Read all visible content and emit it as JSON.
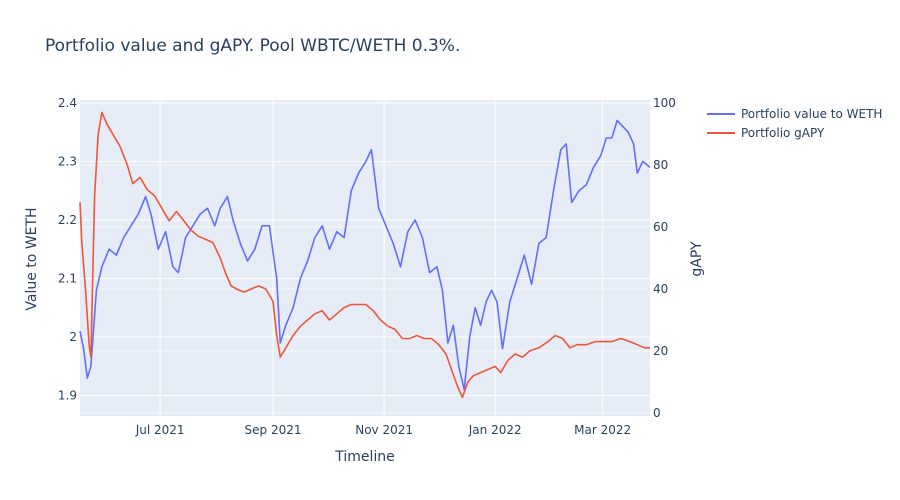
{
  "chart_data": {
    "type": "line",
    "title": "Portfolio value and gAPY. Pool WBTC/WETH 0.3%.",
    "xlabel": "Timeline",
    "ylabel_left": "Value to WETH",
    "ylabel_right": "gAPY",
    "x_range": [
      "2021-05-18",
      "2022-03-27"
    ],
    "y_left_range": [
      1.865,
      2.405
    ],
    "y_right_range": [
      -1,
      101
    ],
    "x_ticks": [
      {
        "date": "2021-07-01",
        "label": "Jul 2021"
      },
      {
        "date": "2021-09-01",
        "label": "Sep 2021"
      },
      {
        "date": "2021-11-01",
        "label": "Nov 2021"
      },
      {
        "date": "2022-01-01",
        "label": "Jan 2022"
      },
      {
        "date": "2022-03-01",
        "label": "Mar 2022"
      }
    ],
    "y_left_ticks": [
      {
        "value": 1.9,
        "label": "1.9"
      },
      {
        "value": 2.0,
        "label": "2"
      },
      {
        "value": 2.1,
        "label": "2.1"
      },
      {
        "value": 2.2,
        "label": "2.2"
      },
      {
        "value": 2.3,
        "label": "2.3"
      },
      {
        "value": 2.4,
        "label": "2.4"
      }
    ],
    "y_right_ticks": [
      {
        "value": 0,
        "label": "0"
      },
      {
        "value": 20,
        "label": "20"
      },
      {
        "value": 40,
        "label": "40"
      },
      {
        "value": 60,
        "label": "60"
      },
      {
        "value": 80,
        "label": "80"
      },
      {
        "value": 100,
        "label": "100"
      }
    ],
    "legend_position": "top-right",
    "series": [
      {
        "name": "Portfolio value to WETH",
        "color": "#636efa",
        "axis": "left",
        "points": [
          [
            "2021-05-18",
            2.01
          ],
          [
            "2021-05-20",
            1.98
          ],
          [
            "2021-05-22",
            1.93
          ],
          [
            "2021-05-24",
            1.95
          ],
          [
            "2021-05-27",
            2.08
          ],
          [
            "2021-05-30",
            2.12
          ],
          [
            "2021-06-03",
            2.15
          ],
          [
            "2021-06-07",
            2.14
          ],
          [
            "2021-06-11",
            2.17
          ],
          [
            "2021-06-15",
            2.19
          ],
          [
            "2021-06-19",
            2.21
          ],
          [
            "2021-06-23",
            2.24
          ],
          [
            "2021-06-26",
            2.21
          ],
          [
            "2021-06-30",
            2.15
          ],
          [
            "2021-07-04",
            2.18
          ],
          [
            "2021-07-08",
            2.12
          ],
          [
            "2021-07-11",
            2.11
          ],
          [
            "2021-07-15",
            2.17
          ],
          [
            "2021-07-19",
            2.19
          ],
          [
            "2021-07-23",
            2.21
          ],
          [
            "2021-07-27",
            2.22
          ],
          [
            "2021-07-31",
            2.19
          ],
          [
            "2021-08-03",
            2.22
          ],
          [
            "2021-08-07",
            2.24
          ],
          [
            "2021-08-10",
            2.2
          ],
          [
            "2021-08-14",
            2.16
          ],
          [
            "2021-08-18",
            2.13
          ],
          [
            "2021-08-22",
            2.15
          ],
          [
            "2021-08-26",
            2.19
          ],
          [
            "2021-08-30",
            2.19
          ],
          [
            "2021-09-03",
            2.1
          ],
          [
            "2021-09-05",
            1.99
          ],
          [
            "2021-09-08",
            2.02
          ],
          [
            "2021-09-12",
            2.05
          ],
          [
            "2021-09-16",
            2.1
          ],
          [
            "2021-09-20",
            2.13
          ],
          [
            "2021-09-24",
            2.17
          ],
          [
            "2021-09-28",
            2.19
          ],
          [
            "2021-10-02",
            2.15
          ],
          [
            "2021-10-06",
            2.18
          ],
          [
            "2021-10-10",
            2.17
          ],
          [
            "2021-10-14",
            2.25
          ],
          [
            "2021-10-18",
            2.28
          ],
          [
            "2021-10-22",
            2.3
          ],
          [
            "2021-10-25",
            2.32
          ],
          [
            "2021-10-29",
            2.22
          ],
          [
            "2021-11-02",
            2.19
          ],
          [
            "2021-11-06",
            2.16
          ],
          [
            "2021-11-10",
            2.12
          ],
          [
            "2021-11-14",
            2.18
          ],
          [
            "2021-11-18",
            2.2
          ],
          [
            "2021-11-22",
            2.17
          ],
          [
            "2021-11-26",
            2.11
          ],
          [
            "2021-11-30",
            2.12
          ],
          [
            "2021-12-03",
            2.08
          ],
          [
            "2021-12-06",
            1.99
          ],
          [
            "2021-12-09",
            2.02
          ],
          [
            "2021-12-12",
            1.95
          ],
          [
            "2021-12-15",
            1.91
          ],
          [
            "2021-12-18",
            2.0
          ],
          [
            "2021-12-21",
            2.05
          ],
          [
            "2021-12-24",
            2.02
          ],
          [
            "2021-12-27",
            2.06
          ],
          [
            "2021-12-30",
            2.08
          ],
          [
            "2022-01-02",
            2.06
          ],
          [
            "2022-01-05",
            1.98
          ],
          [
            "2022-01-09",
            2.06
          ],
          [
            "2022-01-13",
            2.1
          ],
          [
            "2022-01-17",
            2.14
          ],
          [
            "2022-01-21",
            2.09
          ],
          [
            "2022-01-25",
            2.16
          ],
          [
            "2022-01-29",
            2.17
          ],
          [
            "2022-02-02",
            2.25
          ],
          [
            "2022-02-06",
            2.32
          ],
          [
            "2022-02-09",
            2.33
          ],
          [
            "2022-02-12",
            2.23
          ],
          [
            "2022-02-16",
            2.25
          ],
          [
            "2022-02-20",
            2.26
          ],
          [
            "2022-02-24",
            2.29
          ],
          [
            "2022-02-28",
            2.31
          ],
          [
            "2022-03-03",
            2.34
          ],
          [
            "2022-03-06",
            2.34
          ],
          [
            "2022-03-09",
            2.37
          ],
          [
            "2022-03-12",
            2.36
          ],
          [
            "2022-03-15",
            2.35
          ],
          [
            "2022-03-18",
            2.33
          ],
          [
            "2022-03-20",
            2.28
          ],
          [
            "2022-03-23",
            2.3
          ],
          [
            "2022-03-27",
            2.29
          ]
        ]
      },
      {
        "name": "Portfolio gAPY",
        "color": "#ef553b",
        "axis": "right",
        "points": [
          [
            "2021-05-18",
            68
          ],
          [
            "2021-05-19",
            55
          ],
          [
            "2021-05-21",
            40
          ],
          [
            "2021-05-23",
            22
          ],
          [
            "2021-05-24",
            18
          ],
          [
            "2021-05-26",
            70
          ],
          [
            "2021-05-28",
            90
          ],
          [
            "2021-05-30",
            97
          ],
          [
            "2021-06-02",
            93
          ],
          [
            "2021-06-05",
            90
          ],
          [
            "2021-06-09",
            86
          ],
          [
            "2021-06-13",
            80
          ],
          [
            "2021-06-16",
            74
          ],
          [
            "2021-06-20",
            76
          ],
          [
            "2021-06-24",
            72
          ],
          [
            "2021-06-28",
            70
          ],
          [
            "2021-07-02",
            66
          ],
          [
            "2021-07-06",
            62
          ],
          [
            "2021-07-10",
            65
          ],
          [
            "2021-07-14",
            62
          ],
          [
            "2021-07-18",
            59
          ],
          [
            "2021-07-22",
            57
          ],
          [
            "2021-07-26",
            56
          ],
          [
            "2021-07-30",
            55
          ],
          [
            "2021-08-03",
            50
          ],
          [
            "2021-08-06",
            45
          ],
          [
            "2021-08-09",
            41
          ],
          [
            "2021-08-12",
            40
          ],
          [
            "2021-08-16",
            39
          ],
          [
            "2021-08-20",
            40
          ],
          [
            "2021-08-24",
            41
          ],
          [
            "2021-08-28",
            40
          ],
          [
            "2021-09-01",
            36
          ],
          [
            "2021-09-03",
            25
          ],
          [
            "2021-09-05",
            18
          ],
          [
            "2021-09-08",
            21
          ],
          [
            "2021-09-12",
            25
          ],
          [
            "2021-09-16",
            28
          ],
          [
            "2021-09-20",
            30
          ],
          [
            "2021-09-24",
            32
          ],
          [
            "2021-09-28",
            33
          ],
          [
            "2021-10-02",
            30
          ],
          [
            "2021-10-06",
            32
          ],
          [
            "2021-10-10",
            34
          ],
          [
            "2021-10-14",
            35
          ],
          [
            "2021-10-18",
            35
          ],
          [
            "2021-10-22",
            35
          ],
          [
            "2021-10-26",
            33
          ],
          [
            "2021-10-30",
            30
          ],
          [
            "2021-11-03",
            28
          ],
          [
            "2021-11-07",
            27
          ],
          [
            "2021-11-11",
            24
          ],
          [
            "2021-11-15",
            24
          ],
          [
            "2021-11-19",
            25
          ],
          [
            "2021-11-23",
            24
          ],
          [
            "2021-11-27",
            24
          ],
          [
            "2021-12-01",
            22
          ],
          [
            "2021-12-05",
            19
          ],
          [
            "2021-12-08",
            14
          ],
          [
            "2021-12-11",
            9
          ],
          [
            "2021-12-14",
            5
          ],
          [
            "2021-12-17",
            10
          ],
          [
            "2021-12-20",
            12
          ],
          [
            "2021-12-24",
            13
          ],
          [
            "2021-12-28",
            14
          ],
          [
            "2022-01-01",
            15
          ],
          [
            "2022-01-04",
            13
          ],
          [
            "2022-01-08",
            17
          ],
          [
            "2022-01-12",
            19
          ],
          [
            "2022-01-16",
            18
          ],
          [
            "2022-01-20",
            20
          ],
          [
            "2022-01-25",
            21
          ],
          [
            "2022-01-30",
            23
          ],
          [
            "2022-02-03",
            25
          ],
          [
            "2022-02-07",
            24
          ],
          [
            "2022-02-11",
            21
          ],
          [
            "2022-02-15",
            22
          ],
          [
            "2022-02-20",
            22
          ],
          [
            "2022-02-25",
            23
          ],
          [
            "2022-03-01",
            23
          ],
          [
            "2022-03-06",
            23
          ],
          [
            "2022-03-11",
            24
          ],
          [
            "2022-03-16",
            23
          ],
          [
            "2022-03-20",
            22
          ],
          [
            "2022-03-24",
            21
          ],
          [
            "2022-03-27",
            21
          ]
        ]
      }
    ]
  }
}
